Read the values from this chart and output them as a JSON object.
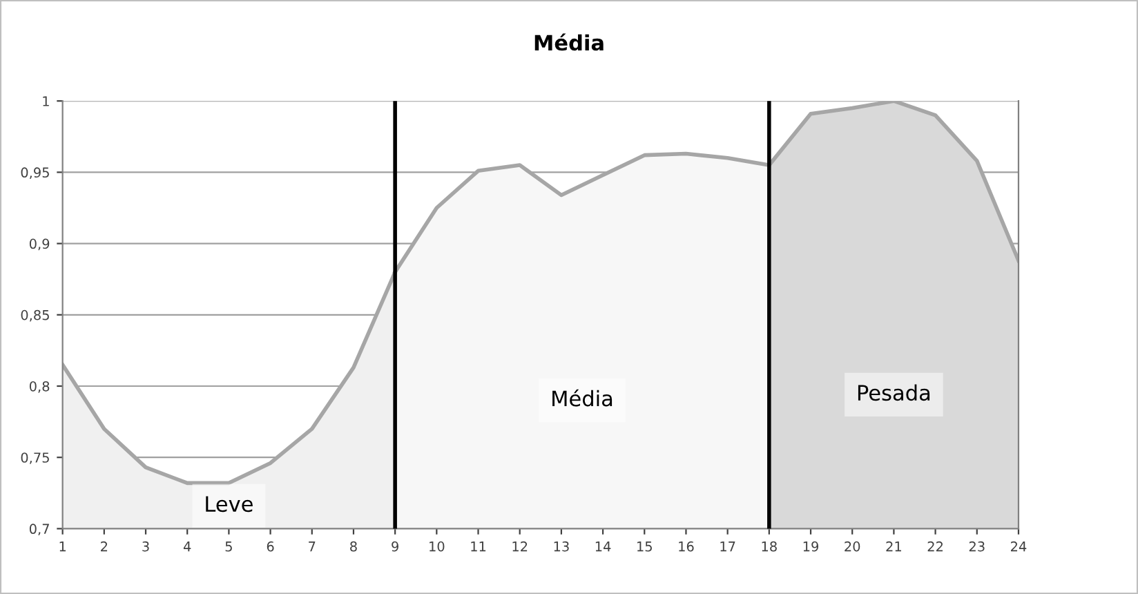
{
  "chart_data": {
    "type": "area",
    "title": "Média",
    "series": [
      {
        "name": "Leve",
        "color": "#f0f0f0",
        "x": [
          1,
          2,
          3,
          4,
          5,
          6,
          7,
          8,
          9
        ],
        "values": [
          0.815,
          0.77,
          0.743,
          0.732,
          0.732,
          0.746,
          0.77,
          0.813,
          0.88
        ]
      },
      {
        "name": "Média",
        "color": "#f7f7f7",
        "x": [
          9,
          10,
          11,
          12,
          13,
          14,
          15,
          16,
          17,
          18
        ],
        "values": [
          0.88,
          0.925,
          0.951,
          0.955,
          0.934,
          0.948,
          0.962,
          0.963,
          0.96,
          0.955
        ]
      },
      {
        "name": "Pesada",
        "color": "#d9d9d9",
        "x": [
          18,
          19,
          20,
          21,
          22,
          23,
          24
        ],
        "values": [
          0.955,
          0.991,
          0.995,
          1.0,
          0.99,
          0.958,
          0.888
        ]
      }
    ],
    "xlim": [
      1,
      24
    ],
    "xticks": [
      1,
      2,
      3,
      4,
      5,
      6,
      7,
      8,
      9,
      10,
      11,
      12,
      13,
      14,
      15,
      16,
      17,
      18,
      19,
      20,
      21,
      22,
      23,
      24
    ],
    "ylim": [
      0.7,
      1
    ],
    "yticks": [
      {
        "value": 0.7,
        "label": "0,7"
      },
      {
        "value": 0.75,
        "label": "0,75"
      },
      {
        "value": 0.8,
        "label": "0,8"
      },
      {
        "value": 0.85,
        "label": "0,85"
      },
      {
        "value": 0.9,
        "label": "0,9"
      },
      {
        "value": 0.95,
        "label": "0,95"
      },
      {
        "value": 1,
        "label": "1"
      }
    ],
    "ref_lines": [
      {
        "axis": "x",
        "value": 9,
        "label": null,
        "color": "#000000"
      },
      {
        "axis": "x",
        "value": 18,
        "label": null,
        "color": "#000000"
      }
    ],
    "grid": "y",
    "legend": false,
    "marker": "none",
    "line_style": "solid"
  }
}
